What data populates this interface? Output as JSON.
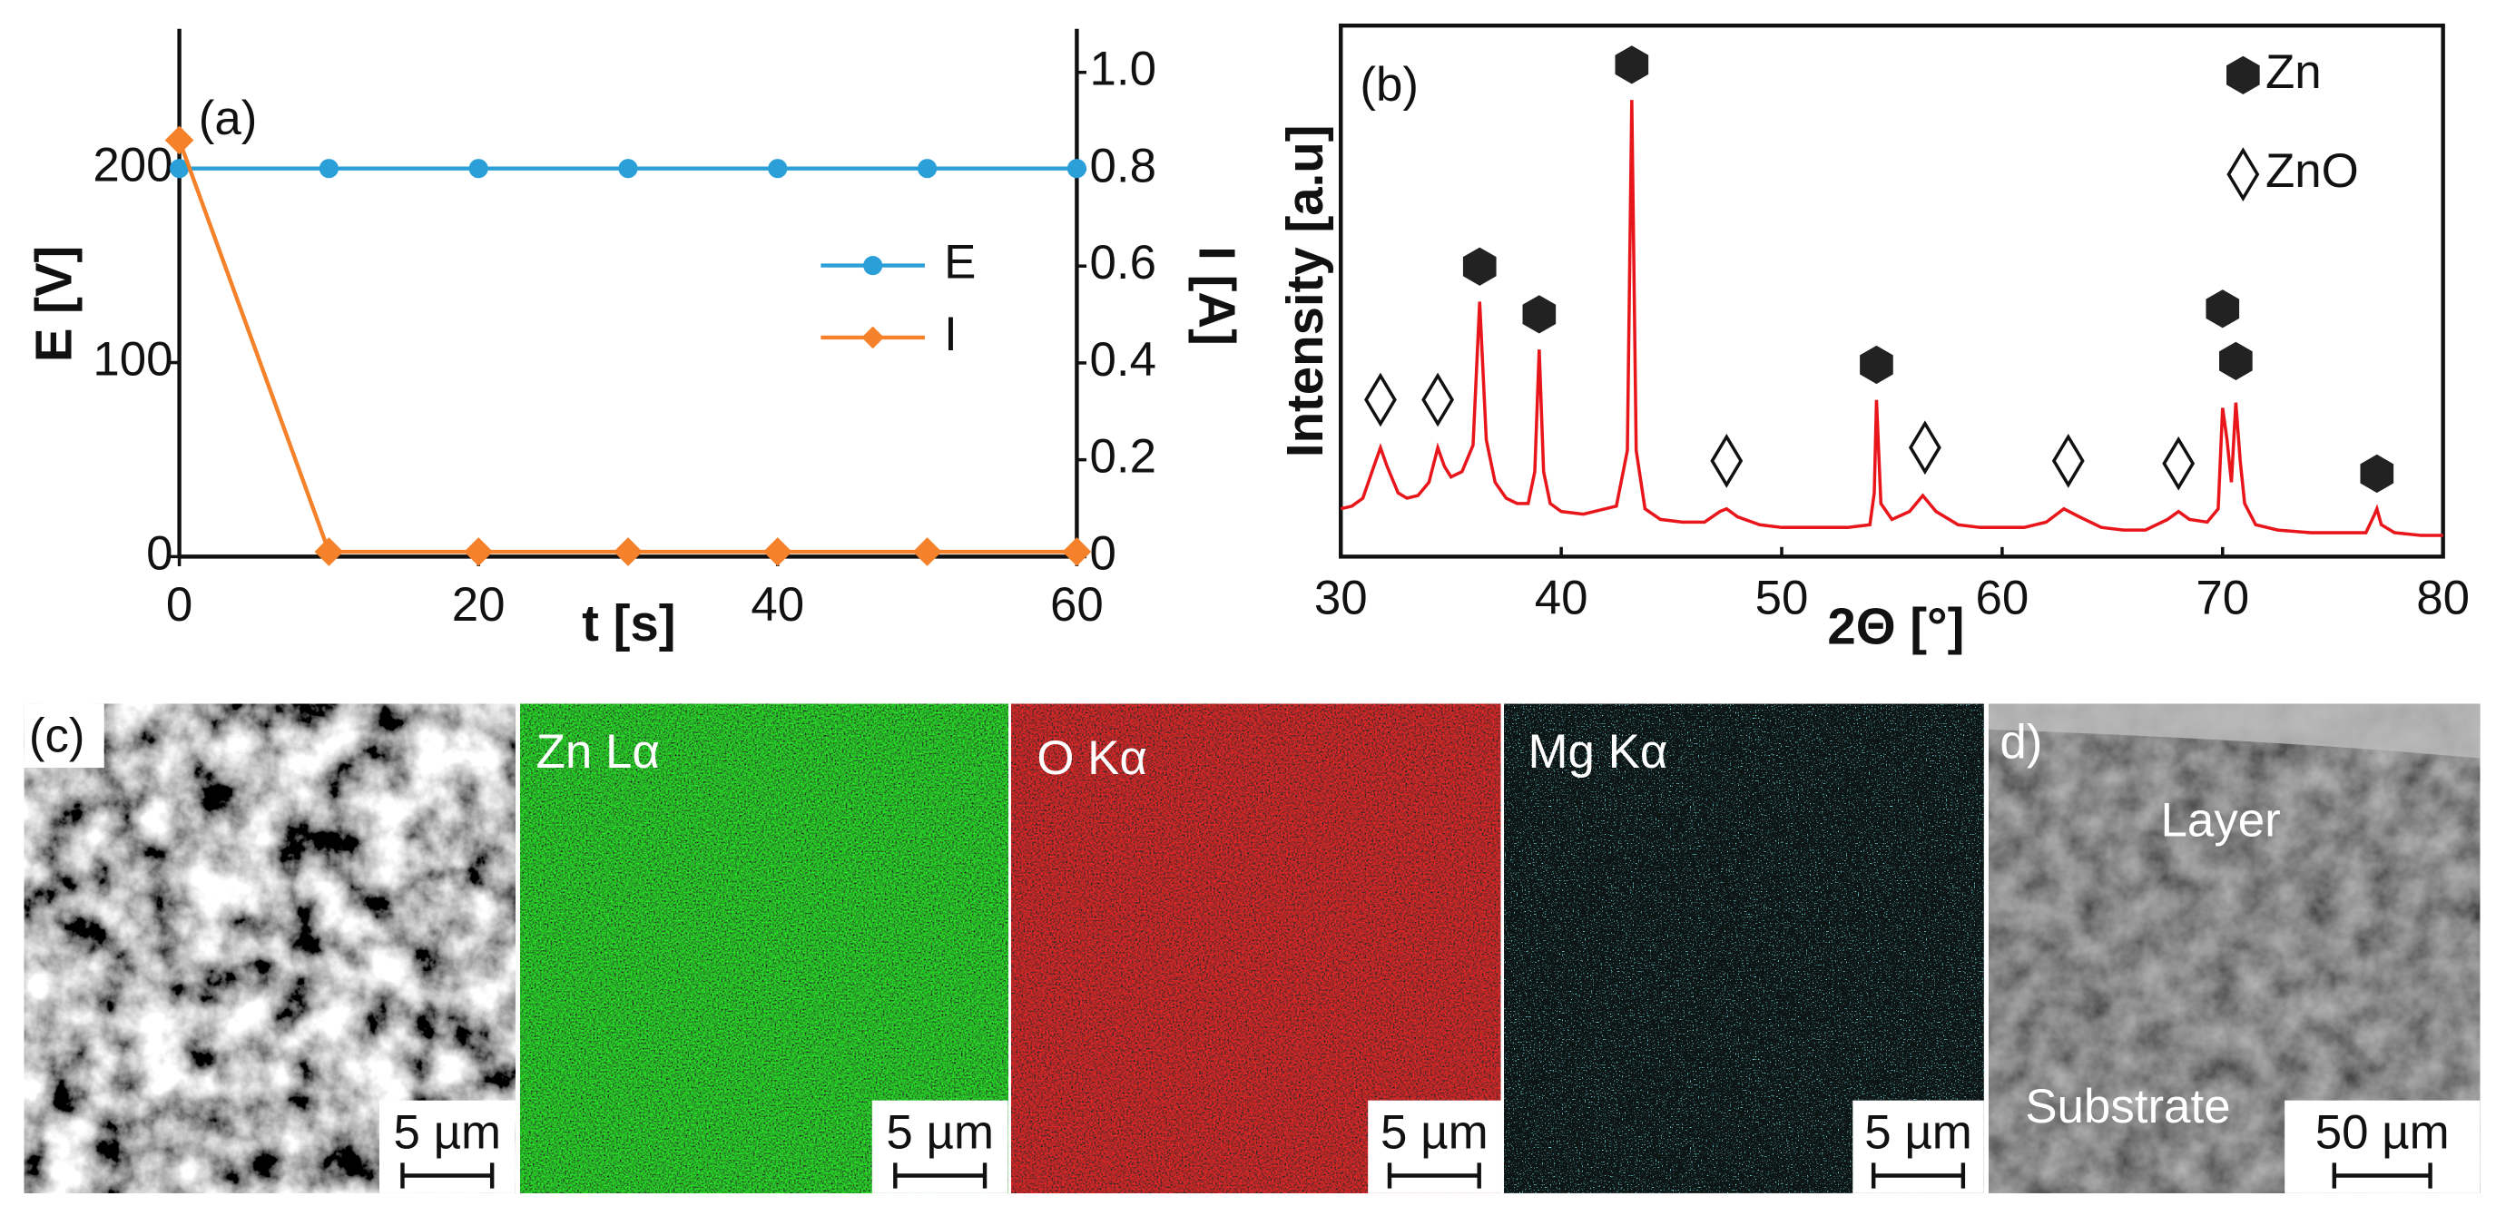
{
  "chart_data": [
    {
      "type": "line",
      "title": "(a)",
      "x_label": "t [s]",
      "y_label": "E [V]",
      "y2_label": "I [A]",
      "x": [
        0,
        10,
        20,
        30,
        40,
        50,
        60
      ],
      "xlim": [
        0,
        60
      ],
      "xticks": [
        0,
        20,
        40,
        60
      ],
      "ylim": [
        0,
        272
      ],
      "yticks": [
        0,
        100,
        200
      ],
      "y2lim": [
        0,
        1.09
      ],
      "y2ticks": [
        0,
        0.2,
        0.4,
        0.6,
        0.8,
        {
          "value": 1.0,
          "label": "1.0"
        }
      ],
      "legend": "center right",
      "series": [
        {
          "name": "E",
          "color": "#2a9fd8",
          "values": [
            200,
            200,
            200,
            200,
            200,
            200,
            200
          ]
        },
        {
          "name": "I",
          "color": "#f5822a",
          "axis": "y2",
          "values": [
            0.86,
            0.01,
            0.01,
            0.01,
            0.01,
            0.01,
            0.01
          ]
        }
      ]
    },
    {
      "type": "line",
      "title": "(b)",
      "x_label": "2Θ [°]",
      "y_label": "Intensity [a.u]",
      "xlim": [
        30,
        80
      ],
      "xticks": [
        30,
        40,
        50,
        60,
        70,
        80
      ],
      "ylim": [
        0,
        100
      ],
      "legend": "upper right",
      "x": [
        30,
        30.5,
        31,
        31.5,
        31.8,
        32.1,
        32.6,
        33,
        33.5,
        34,
        34.4,
        34.7,
        35,
        35.5,
        36,
        36.3,
        36.6,
        37,
        37.5,
        38,
        38.5,
        38.8,
        39,
        39.2,
        39.5,
        40,
        41,
        42,
        42.5,
        43,
        43.2,
        43.4,
        43.8,
        44.5,
        45.5,
        46.5,
        47.2,
        47.5,
        48,
        49,
        50,
        51,
        52,
        53,
        54,
        54.2,
        54.3,
        54.5,
        55,
        55.8,
        56.4,
        57,
        58,
        59,
        60,
        61,
        62,
        62.8,
        63.5,
        64.5,
        65.5,
        66.5,
        67.5,
        68,
        68.5,
        69.3,
        69.8,
        70,
        70.2,
        70.4,
        70.6,
        70.8,
        71,
        71.5,
        72.5,
        74,
        75.5,
        76.5,
        76.9,
        77,
        77.2,
        77.8,
        79,
        80
      ],
      "series": [
        {
          "color": "#e8161b",
          "values": [
            9,
            9.5,
            11,
            17,
            20.5,
            17,
            12,
            11,
            11.5,
            14,
            20.5,
            17,
            15,
            16,
            21,
            48,
            22,
            14,
            11,
            10,
            10,
            16,
            39,
            16,
            10,
            8.5,
            8,
            9,
            9.5,
            20,
            86,
            20,
            9,
            7,
            6.5,
            6.5,
            8.5,
            9,
            7.5,
            6,
            5.5,
            5.5,
            5.5,
            5.5,
            6,
            12,
            29.5,
            10,
            7,
            8.5,
            11.5,
            8.5,
            6,
            5.5,
            5.5,
            5.5,
            6.5,
            9,
            7.5,
            5.5,
            5,
            5,
            7,
            8.5,
            7,
            6.5,
            9,
            28,
            22,
            14,
            29,
            18,
            10,
            6,
            5,
            4.5,
            4.5,
            4.5,
            8,
            9,
            6,
            4.5,
            4,
            4
          ]
        }
      ],
      "markers": [
        {
          "name": "Zn",
          "shape": "hexagon",
          "x": [
            36.3,
            39,
            43.2,
            54.3,
            70,
            70.6,
            77
          ]
        },
        {
          "name": "ZnO",
          "shape": "diamond",
          "x": [
            31.8,
            34.4,
            47.5,
            56.5,
            63,
            68
          ]
        }
      ]
    }
  ],
  "panels": [
    {
      "label": "(c)",
      "scale_bar": "5 µm"
    },
    {
      "label": "Zn Lα",
      "scale_bar": "5 µm"
    },
    {
      "label": "O Kα",
      "scale_bar": "5 µm"
    },
    {
      "label": "Mg Kα",
      "scale_bar": "5 µm"
    },
    {
      "label": "d)",
      "regions": [
        "Layer",
        "Substrate"
      ],
      "scale_bar": "50 µm"
    }
  ]
}
